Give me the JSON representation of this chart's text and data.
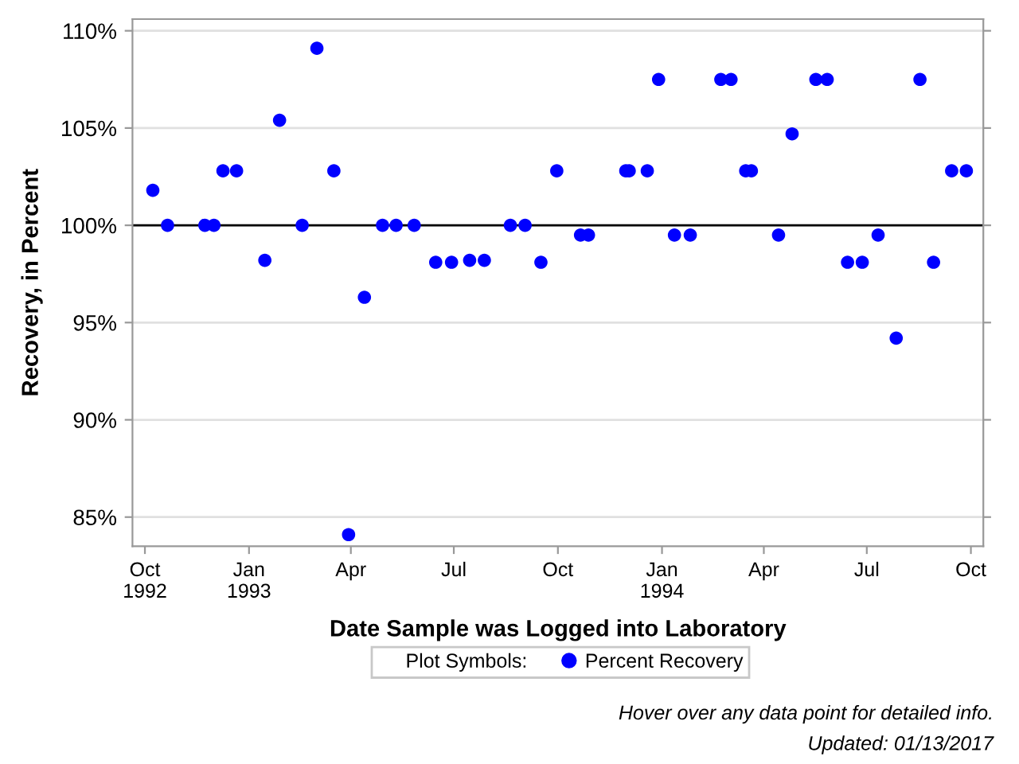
{
  "chart_data": {
    "type": "scatter",
    "xlabel": "Date Sample was Logged into Laboratory",
    "ylabel": "Recovery, in Percent",
    "legend_title": "Plot Symbols:",
    "legend": "bottom",
    "marker": "circle",
    "grid": "y",
    "xlim": [
      "1992-09-20",
      "1994-10-12"
    ],
    "ylim": [
      83.5,
      110.6
    ],
    "xticks": [
      {
        "value": "1992-10-01",
        "label": "Oct\n1992"
      },
      {
        "value": "1993-01-01",
        "label": "Jan\n1993"
      },
      {
        "value": "1993-04-01",
        "label": "Apr"
      },
      {
        "value": "1993-07-01",
        "label": "Jul"
      },
      {
        "value": "1993-10-01",
        "label": "Oct"
      },
      {
        "value": "1994-01-01",
        "label": "Jan\n1994"
      },
      {
        "value": "1994-04-01",
        "label": "Apr"
      },
      {
        "value": "1994-07-01",
        "label": "Jul"
      },
      {
        "value": "1994-10-01",
        "label": "Oct"
      }
    ],
    "yticks": [
      {
        "value": 85,
        "label": "85%"
      },
      {
        "value": 90,
        "label": "90%"
      },
      {
        "value": 95,
        "label": "95%"
      },
      {
        "value": 100,
        "label": "100%"
      },
      {
        "value": 105,
        "label": "105%"
      },
      {
        "value": 110,
        "label": "110%"
      }
    ],
    "ref_lines": [
      {
        "axis": "y",
        "value": 100,
        "label": null,
        "color": "#000000"
      }
    ],
    "annotations": [
      "Hover over any data point for detailed info.",
      "Updated: 01/13/2017"
    ],
    "series": [
      {
        "name": "Percent Recovery",
        "color": "#0000ff",
        "x": [
          "1992-10-08",
          "1992-10-21",
          "1992-11-23",
          "1992-12-01",
          "1992-12-09",
          "1992-12-21",
          "1993-01-15",
          "1993-01-28",
          "1993-02-17",
          "1993-03-02",
          "1993-03-17",
          "1993-03-30",
          "1993-04-13",
          "1993-04-29",
          "1993-05-11",
          "1993-05-27",
          "1993-06-15",
          "1993-06-29",
          "1993-07-15",
          "1993-07-28",
          "1993-08-20",
          "1993-09-02",
          "1993-09-16",
          "1993-09-30",
          "1993-10-21",
          "1993-10-28",
          "1993-11-30",
          "1993-12-03",
          "1993-12-19",
          "1993-12-29",
          "1994-01-12",
          "1994-01-26",
          "1994-02-22",
          "1994-03-03",
          "1994-03-16",
          "1994-03-21",
          "1994-04-14",
          "1994-04-26",
          "1994-05-17",
          "1994-05-27",
          "1994-06-14",
          "1994-06-27",
          "1994-07-11",
          "1994-07-27",
          "1994-08-17",
          "1994-08-29",
          "1994-09-14",
          "1994-09-27"
        ],
        "values": [
          101.8,
          100,
          100,
          100,
          102.8,
          102.8,
          98.2,
          105.4,
          100,
          109.1,
          102.8,
          84.1,
          96.3,
          100,
          100,
          100,
          98.1,
          98.1,
          98.2,
          98.2,
          100,
          100,
          98.1,
          102.8,
          99.5,
          99.5,
          102.8,
          102.8,
          102.8,
          107.5,
          99.5,
          99.5,
          107.5,
          107.5,
          102.8,
          102.8,
          99.5,
          104.7,
          107.5,
          107.5,
          98.1,
          98.1,
          99.5,
          94.2,
          107.5,
          98.1,
          102.8,
          102.8
        ]
      }
    ]
  }
}
